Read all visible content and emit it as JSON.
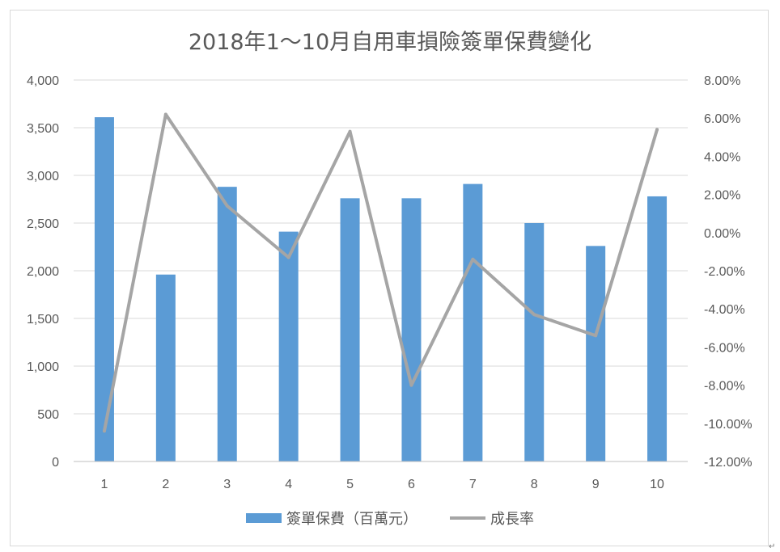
{
  "chart_data": {
    "type": "bar",
    "title": "2018年1～10月自用車損險簽單保費變化",
    "categories": [
      "1",
      "2",
      "3",
      "4",
      "5",
      "6",
      "7",
      "8",
      "9",
      "10"
    ],
    "series": [
      {
        "name": "簽單保費（百萬元）",
        "type": "bar",
        "axis": "left",
        "color": "#5b9bd5",
        "values": [
          3610,
          1960,
          2880,
          2410,
          2760,
          2760,
          2910,
          2500,
          2260,
          2780
        ]
      },
      {
        "name": "成長率",
        "type": "line",
        "axis": "right",
        "color": "#a5a5a5",
        "values": [
          -10.4,
          6.2,
          1.4,
          -1.3,
          5.3,
          -8.0,
          -1.4,
          -4.3,
          -5.4,
          5.4
        ]
      }
    ],
    "y_left": {
      "ylim": [
        0,
        4000
      ],
      "ticks": [
        0,
        500,
        1000,
        1500,
        2000,
        2500,
        3000,
        3500,
        4000
      ],
      "tick_labels": [
        "0",
        "500",
        "1,000",
        "1,500",
        "2,000",
        "2,500",
        "3,000",
        "3,500",
        "4,000"
      ]
    },
    "y_right": {
      "ylim": [
        -12,
        8
      ],
      "ticks": [
        -12,
        -10,
        -8,
        -6,
        -4,
        -2,
        0,
        2,
        4,
        6,
        8
      ],
      "tick_labels": [
        "-12.00%",
        "-10.00%",
        "-8.00%",
        "-6.00%",
        "-4.00%",
        "-2.00%",
        "0.00%",
        "2.00%",
        "4.00%",
        "6.00%",
        "8.00%"
      ]
    },
    "grid": true,
    "legend": "bottom"
  },
  "end_mark": "↵"
}
